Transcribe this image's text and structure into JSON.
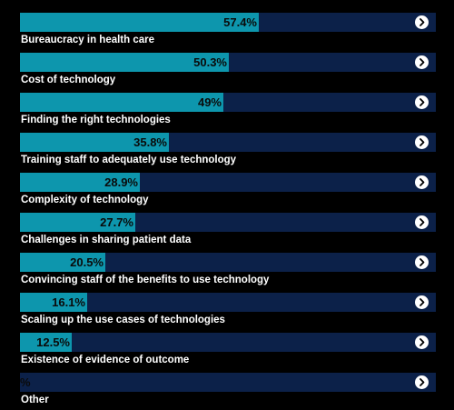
{
  "chart_data": {
    "type": "bar",
    "orientation": "horizontal",
    "categories": [
      "Bureaucracy in health care",
      "Cost of technology",
      "Finding the right technologies",
      "Training staff to adequately use technology",
      "Complexity of technology",
      "Challenges in sharing patient data",
      "Convincing staff of the benefits to use technology",
      "Scaling up the use cases of technologies",
      "Existence of evidence of outcome",
      "Other"
    ],
    "values": [
      57.4,
      50.3,
      49,
      35.8,
      28.9,
      27.7,
      20.5,
      16.1,
      12.5,
      0
    ],
    "value_labels": [
      "57.4%",
      "50.3%",
      "49%",
      "35.8%",
      "28.9%",
      "27.7%",
      "20.5%",
      "16.1%",
      "12.5%",
      "%"
    ],
    "xlim": [
      0,
      100
    ],
    "grid": false,
    "legend": "none"
  },
  "colors": {
    "background": "#000000",
    "bar_fill": "#0d96ad",
    "bar_track": "#0c2149",
    "value_text": "#0a0a0a",
    "label_text": "#ffffff",
    "arrow_icon": "#ffffff"
  },
  "icons": {
    "row_action": "chevron-right-circle-icon"
  }
}
